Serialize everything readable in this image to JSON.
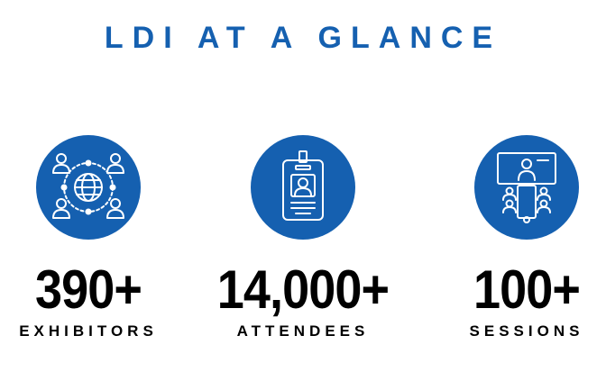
{
  "title": "LDI AT A GLANCE",
  "stats": [
    {
      "icon": "global-network-people-icon",
      "number": "390+",
      "label": "EXHIBITORS"
    },
    {
      "icon": "id-badge-icon",
      "number": "14,000+",
      "label": "ATTENDEES"
    },
    {
      "icon": "conference-session-icon",
      "number": "100+",
      "label": "SESSIONS"
    }
  ],
  "colors": {
    "accent": "#1560b0",
    "text": "#000000",
    "background": "#ffffff"
  }
}
